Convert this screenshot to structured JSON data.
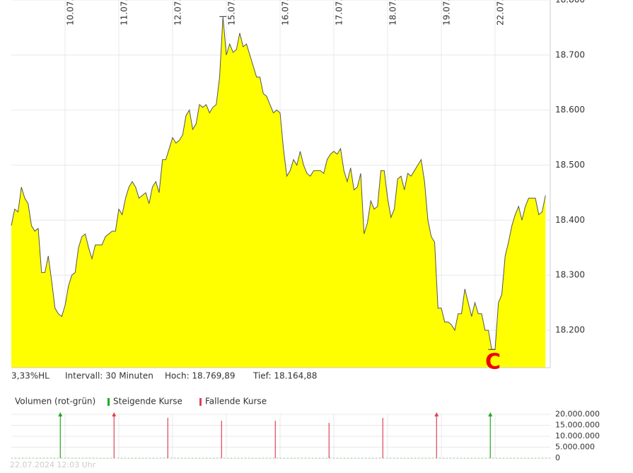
{
  "chart_data": [
    {
      "type": "area",
      "color": "#ffff00",
      "line_color": "#555555",
      "annotation": "C",
      "categories": [
        null,
        null,
        null,
        null,
        null,
        null,
        null,
        null,
        null,
        null,
        null,
        null,
        null,
        null,
        null,
        null,
        "10.07.",
        null,
        null,
        null,
        null,
        null,
        null,
        null,
        null,
        null,
        null,
        null,
        null,
        null,
        null,
        null,
        "11.07.",
        null,
        null,
        null,
        null,
        null,
        null,
        null,
        null,
        null,
        null,
        null,
        null,
        null,
        null,
        null,
        "12.07.",
        null,
        null,
        null,
        null,
        null,
        null,
        null,
        null,
        null,
        null,
        null,
        null,
        null,
        null,
        null,
        "15.07.",
        null,
        null,
        null,
        null,
        null,
        null,
        null,
        null,
        null,
        null,
        null,
        null,
        null,
        null,
        null,
        "16.07.",
        null,
        null,
        null,
        null,
        null,
        null,
        null,
        null,
        null,
        null,
        null,
        null,
        null,
        null,
        null,
        "17.07.",
        null,
        null,
        null,
        null,
        null,
        null,
        null,
        null,
        null,
        null,
        null,
        null,
        null,
        null,
        null,
        "18.07.",
        null,
        null,
        null,
        null,
        null,
        null,
        null,
        null,
        null,
        null,
        null,
        null,
        null,
        null,
        null,
        "19.07.",
        null,
        null,
        null,
        null,
        null,
        null,
        null,
        null,
        null,
        null,
        null,
        null,
        null,
        null,
        null,
        "22.07.",
        null,
        null,
        null,
        null,
        null,
        null,
        null,
        null,
        null,
        null,
        null,
        null,
        null,
        null,
        null
      ],
      "values": [
        18.39,
        18.42,
        18.415,
        18.46,
        18.44,
        18.43,
        18.39,
        18.38,
        18.385,
        18.305,
        18.305,
        18.335,
        18.29,
        18.24,
        18.23,
        18.225,
        18.245,
        18.28,
        18.3,
        18.305,
        18.35,
        18.37,
        18.375,
        18.35,
        18.33,
        18.355,
        18.355,
        18.355,
        18.37,
        18.375,
        18.38,
        18.38,
        18.42,
        18.41,
        18.44,
        18.46,
        18.47,
        18.46,
        18.44,
        18.445,
        18.45,
        18.43,
        18.46,
        18.47,
        18.45,
        18.51,
        18.51,
        18.53,
        18.55,
        18.54,
        18.545,
        18.555,
        18.59,
        18.6,
        18.565,
        18.575,
        18.61,
        18.605,
        18.61,
        18.595,
        18.605,
        18.61,
        18.66,
        18.77,
        18.7,
        18.72,
        18.705,
        18.71,
        18.74,
        18.715,
        18.72,
        18.7,
        18.68,
        18.66,
        18.66,
        18.63,
        18.625,
        18.61,
        18.595,
        18.6,
        18.595,
        18.53,
        18.48,
        18.49,
        18.51,
        18.5,
        18.525,
        18.5,
        18.485,
        18.48,
        18.49,
        18.49,
        18.49,
        18.485,
        18.51,
        18.52,
        18.525,
        18.52,
        18.53,
        18.49,
        18.47,
        18.495,
        18.455,
        18.46,
        18.485,
        18.375,
        18.395,
        18.435,
        18.42,
        18.425,
        18.49,
        18.49,
        18.44,
        18.405,
        18.42,
        18.475,
        18.48,
        18.455,
        18.485,
        18.48,
        18.49,
        18.5,
        18.51,
        18.47,
        18.4,
        18.37,
        18.36,
        18.24,
        18.24,
        18.215,
        18.215,
        18.21,
        18.2,
        18.23,
        18.23,
        18.275,
        18.25,
        18.225,
        18.25,
        18.23,
        18.23,
        18.2,
        18.2,
        18.165,
        18.165,
        18.25,
        18.265,
        18.335,
        18.36,
        18.39,
        18.41,
        18.425,
        18.4,
        18.425,
        18.44,
        18.44,
        18.44,
        18.41,
        18.415,
        18.445
      ],
      "ylim": [
        18.132,
        18.8
      ],
      "yticks": [
        {
          "value": 18.8,
          "label": "18.800"
        },
        {
          "value": 18.7,
          "label": "18.700"
        },
        {
          "value": 18.6,
          "label": "18.600"
        },
        {
          "value": 18.5,
          "label": "18.500"
        },
        {
          "value": 18.4,
          "label": "18.400"
        },
        {
          "value": 18.3,
          "label": "18.300"
        },
        {
          "value": 18.2,
          "label": "18.200"
        }
      ],
      "grid": true,
      "info": [
        "3,33%HL",
        "Intervall: 30 Minuten",
        "Hoch: 18.769,89",
        "Tief: 18.164,88"
      ]
    },
    {
      "type": "bar",
      "title": "Volumen (rot-grün)",
      "timestamp": "22.07.2024 12:03 Uhr",
      "ylim": [
        0,
        20000000
      ],
      "yticks": [
        {
          "value": 20000000,
          "label": "20.000.000"
        },
        {
          "value": 15000000,
          "label": "15.000.000"
        },
        {
          "value": 10000000,
          "label": "10.000.000"
        },
        {
          "value": 5000000,
          "label": "5.000.000"
        },
        0
      ],
      "series": [
        {
          "name": "Steigende Kurse",
          "color": "#22aa22",
          "values": [
            null,
            null,
            null,
            null,
            null,
            null,
            null,
            null,
            null,
            null,
            null,
            null,
            null,
            null,
            null,
            20000000,
            null,
            null,
            null,
            null,
            null,
            null,
            null,
            null,
            null,
            null,
            null,
            null,
            null,
            null,
            null,
            null,
            null,
            null,
            null,
            null,
            null,
            null,
            null,
            null,
            null,
            null,
            null,
            null,
            null,
            null,
            null,
            null,
            null,
            null,
            null,
            null,
            null,
            null,
            null,
            null,
            null,
            null,
            null,
            null,
            null,
            null,
            null,
            null,
            null,
            null,
            null,
            null,
            null,
            null,
            null,
            null,
            null,
            null,
            null,
            null,
            null,
            null,
            null,
            null,
            null,
            null,
            null,
            null,
            null,
            null,
            null,
            null,
            null,
            null,
            null,
            null,
            null,
            null,
            null,
            null,
            null,
            null,
            null,
            null,
            null,
            null,
            null,
            null,
            null,
            null,
            null,
            null,
            null,
            null,
            null,
            null,
            null,
            null,
            null,
            null,
            null,
            null,
            null,
            null,
            null,
            null,
            null,
            null,
            null,
            null,
            null,
            null,
            null,
            null,
            null,
            null,
            null,
            null,
            null,
            null,
            null,
            null,
            null,
            null,
            null,
            null,
            null,
            20000000,
            null,
            null,
            null,
            null,
            null,
            null,
            null,
            null,
            null,
            null,
            null,
            null,
            null,
            null,
            null,
            null
          ]
        },
        {
          "name": "Fallende Kurse",
          "color": "#dd4455",
          "values": [
            null,
            null,
            null,
            null,
            null,
            null,
            null,
            null,
            null,
            null,
            null,
            null,
            null,
            null,
            null,
            null,
            null,
            null,
            null,
            null,
            null,
            null,
            null,
            null,
            null,
            null,
            null,
            null,
            null,
            null,
            null,
            20000000,
            null,
            null,
            null,
            null,
            null,
            null,
            null,
            null,
            null,
            null,
            null,
            null,
            null,
            null,
            null,
            18400000,
            null,
            null,
            null,
            null,
            null,
            null,
            null,
            null,
            null,
            null,
            null,
            null,
            null,
            null,
            null,
            17100000,
            null,
            null,
            null,
            null,
            null,
            null,
            null,
            null,
            null,
            null,
            null,
            null,
            null,
            null,
            null,
            17100000,
            null,
            null,
            null,
            null,
            null,
            null,
            null,
            null,
            null,
            null,
            null,
            null,
            null,
            null,
            null,
            16100000,
            null,
            null,
            null,
            null,
            null,
            null,
            null,
            null,
            null,
            null,
            null,
            null,
            null,
            null,
            null,
            18400000,
            null,
            null,
            null,
            null,
            null,
            null,
            null,
            null,
            null,
            null,
            null,
            null,
            null,
            null,
            null,
            20000000,
            null,
            null,
            null,
            null,
            null,
            null,
            null,
            null,
            null,
            null,
            null,
            null,
            null,
            null,
            null,
            null,
            null,
            null,
            null,
            null,
            null,
            null,
            null,
            null,
            null,
            null,
            null,
            null,
            null,
            null,
            null,
            null
          ]
        }
      ]
    }
  ]
}
